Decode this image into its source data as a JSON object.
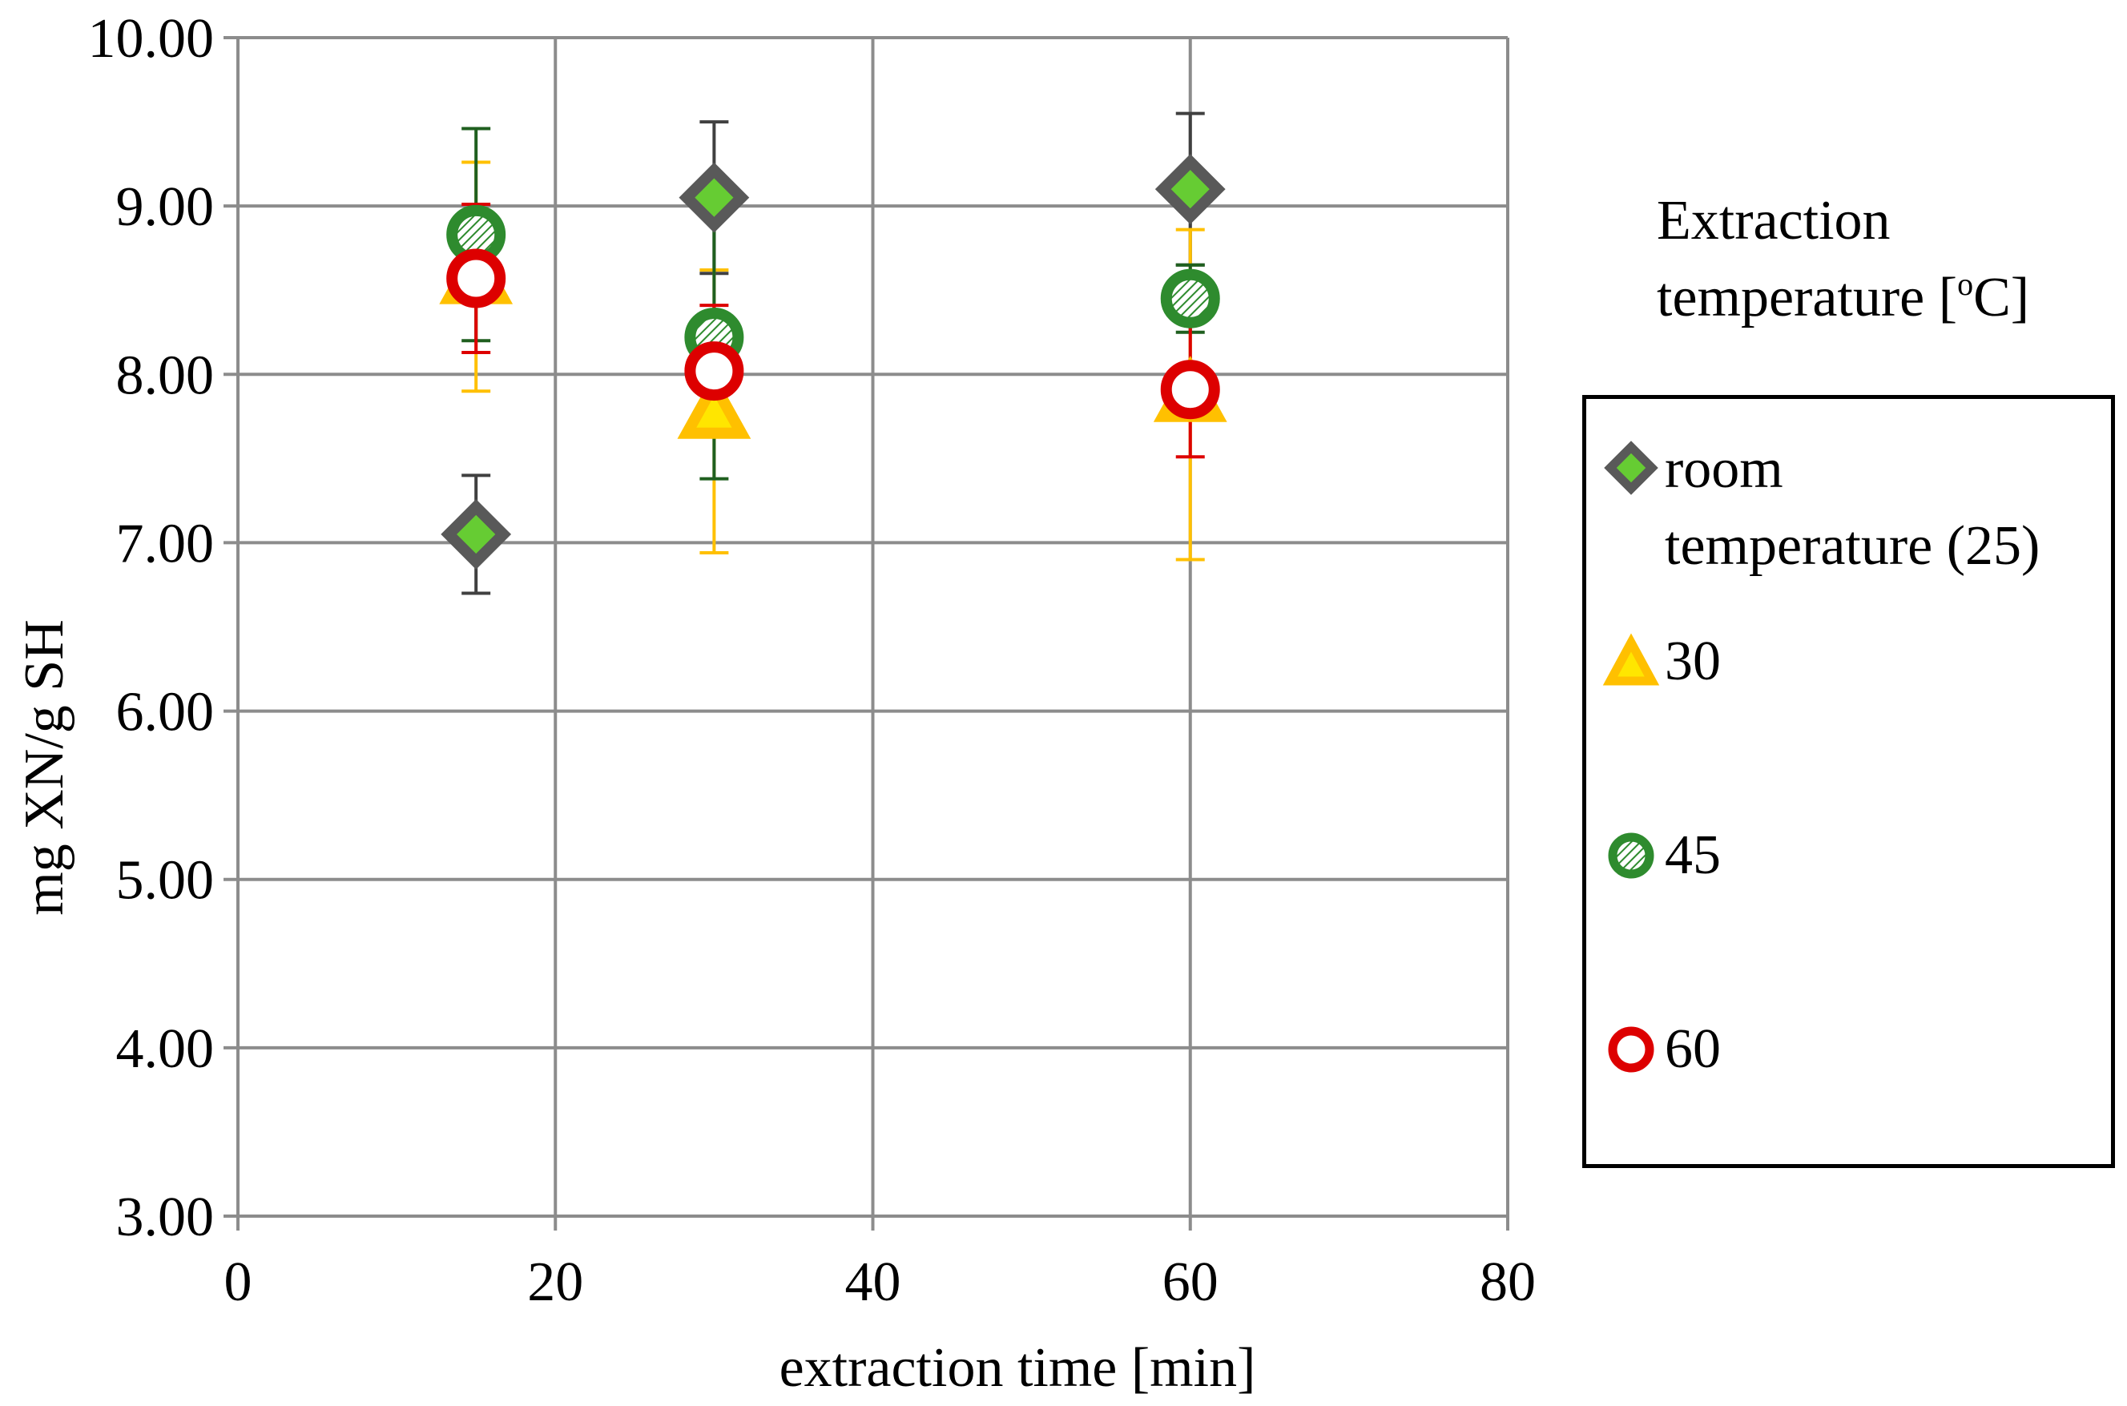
{
  "chart_data": {
    "type": "scatter",
    "title": "",
    "xlabel": "extraction time [min]",
    "ylabel": "mg XN/g SH",
    "xlim": [
      0,
      80
    ],
    "ylim": [
      3,
      10
    ],
    "x_ticks": [
      "0",
      "20",
      "40",
      "60",
      "80"
    ],
    "y_ticks": [
      "3.00",
      "4.00",
      "5.00",
      "6.00",
      "7.00",
      "8.00",
      "9.00",
      "10.00"
    ],
    "grid": true,
    "legend_position": "right",
    "legend_title_line1": "Extraction",
    "legend_title_line2": "temperature [",
    "legend_title_sup": "o",
    "legend_title_end": "C]",
    "series": [
      {
        "name": "room temperature (25)",
        "label_line1": "room",
        "label_line2": "temperature (25)",
        "marker": "diamond",
        "color": "#595959",
        "fill": "#66cc33",
        "err_color": "#404040",
        "x": [
          15,
          30,
          60
        ],
        "y": [
          7.05,
          9.05,
          9.1
        ],
        "err": [
          0.35,
          0.45,
          0.45
        ]
      },
      {
        "name": "30",
        "label_line1": "30",
        "label_line2": "",
        "marker": "triangle",
        "color": "#ffc000",
        "fill": "#ffe600",
        "err_color": "#ffc000",
        "x": [
          15,
          30,
          60
        ],
        "y": [
          8.58,
          7.78,
          7.88
        ],
        "err": [
          0.68,
          0.84,
          0.98
        ]
      },
      {
        "name": "45",
        "label_line1": "45",
        "label_line2": "",
        "marker": "circle-hatched",
        "color": "#2e8b2e",
        "fill": "#ffffff",
        "err_color": "#1f5f1f",
        "x": [
          15,
          30,
          60
        ],
        "y": [
          8.83,
          8.22,
          8.45
        ],
        "err": [
          0.63,
          0.84,
          0.2
        ]
      },
      {
        "name": "60",
        "label_line1": "60",
        "label_line2": "",
        "marker": "circle",
        "color": "#dd0000",
        "fill": "#ffffff",
        "err_color": "#dd0000",
        "x": [
          15,
          30,
          60
        ],
        "y": [
          8.57,
          8.02,
          7.91
        ],
        "err": [
          0.44,
          0.39,
          0.4
        ]
      }
    ]
  }
}
